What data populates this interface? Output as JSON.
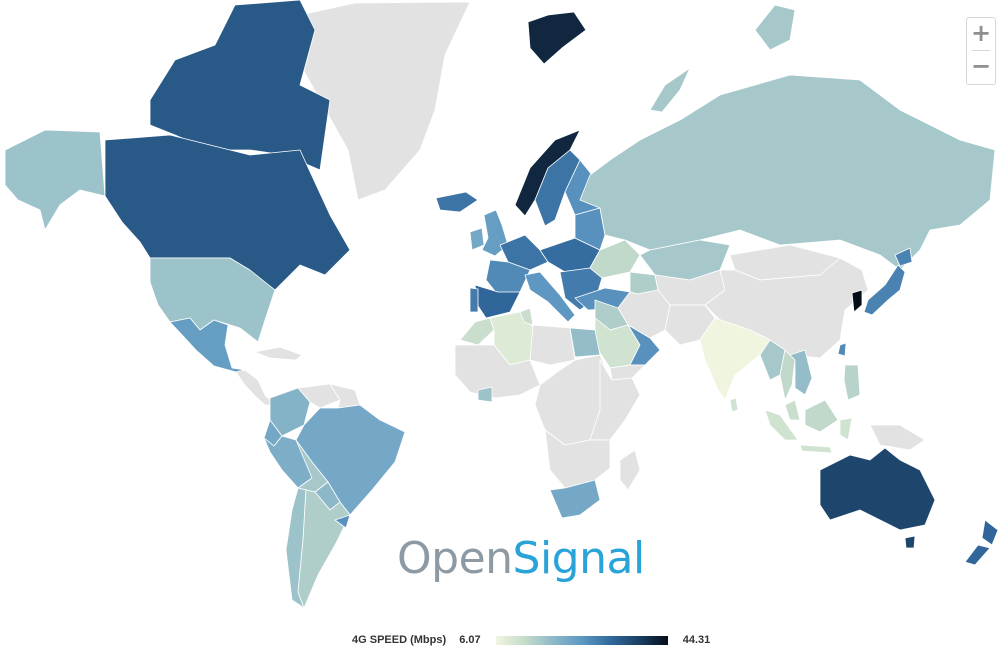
{
  "map": {
    "no_data_color": "#e2e2e2",
    "border_color": "#ffffff",
    "regions": [
      {
        "id": "greenland",
        "name": "Greenland",
        "value": null
      },
      {
        "id": "canada-arctic-islands",
        "name": "Canada",
        "value": 34
      },
      {
        "id": "canada",
        "name": "Canada",
        "value": 34
      },
      {
        "id": "alaska",
        "name": "United States",
        "value": 17
      },
      {
        "id": "usa",
        "name": "United States",
        "value": 17
      },
      {
        "id": "mexico",
        "name": "Mexico",
        "value": 24
      },
      {
        "id": "central-america",
        "name": "Central America",
        "value": null
      },
      {
        "id": "caribbean",
        "name": "Caribbean",
        "value": null
      },
      {
        "id": "colombia",
        "name": "Colombia",
        "value": 20
      },
      {
        "id": "venezuela",
        "name": "Venezuela",
        "value": null
      },
      {
        "id": "guianas",
        "name": "Guianas",
        "value": null
      },
      {
        "id": "ecuador",
        "name": "Ecuador",
        "value": 22
      },
      {
        "id": "peru",
        "name": "Peru",
        "value": 21
      },
      {
        "id": "brazil",
        "name": "Brazil",
        "value": 22
      },
      {
        "id": "bolivia",
        "name": "Bolivia",
        "value": 16
      },
      {
        "id": "paraguay",
        "name": "Paraguay",
        "value": 19
      },
      {
        "id": "chile",
        "name": "Chile",
        "value": 17
      },
      {
        "id": "argentina",
        "name": "Argentina",
        "value": 15
      },
      {
        "id": "uruguay",
        "name": "Uruguay",
        "value": 26
      },
      {
        "id": "iceland",
        "name": "Iceland",
        "value": 30
      },
      {
        "id": "uk",
        "name": "United Kingdom",
        "value": 24
      },
      {
        "id": "ireland",
        "name": "Ireland",
        "value": 22
      },
      {
        "id": "norway",
        "name": "Norway",
        "value": 41
      },
      {
        "id": "sweden",
        "name": "Sweden",
        "value": 30
      },
      {
        "id": "finland",
        "name": "Finland",
        "value": 26
      },
      {
        "id": "svalbard",
        "name": "Svalbard",
        "value": 41
      },
      {
        "id": "western-europe",
        "name": "Western Europe",
        "value": 30
      },
      {
        "id": "france",
        "name": "France",
        "value": 27
      },
      {
        "id": "spain",
        "name": "Spain",
        "value": 32
      },
      {
        "id": "portugal",
        "name": "Portugal",
        "value": 29
      },
      {
        "id": "italy",
        "name": "Italy",
        "value": 25
      },
      {
        "id": "central-europe",
        "name": "Central Europe",
        "value": 31
      },
      {
        "id": "eastern-europe",
        "name": "Eastern Europe",
        "value": 26
      },
      {
        "id": "balkans",
        "name": "Balkans",
        "value": 29
      },
      {
        "id": "ukraine",
        "name": "Ukraine",
        "value": 13
      },
      {
        "id": "turkey",
        "name": "Turkey",
        "value": 26
      },
      {
        "id": "russia",
        "name": "Russia",
        "value": 16
      },
      {
        "id": "novaya-zemlya",
        "name": "Russia",
        "value": 16
      },
      {
        "id": "severnaya-zemlya",
        "name": "Russia",
        "value": 16
      },
      {
        "id": "kazakhstan",
        "name": "Kazakhstan",
        "value": 16
      },
      {
        "id": "caucasus",
        "name": "Caucasus",
        "value": 15
      },
      {
        "id": "central-asia",
        "name": "Central Asia",
        "value": null
      },
      {
        "id": "mongolia",
        "name": "Mongolia",
        "value": null
      },
      {
        "id": "china",
        "name": "China",
        "value": null
      },
      {
        "id": "taiwan",
        "name": "Taiwan",
        "value": 27
      },
      {
        "id": "korea",
        "name": "South Korea",
        "value": 44.31
      },
      {
        "id": "japan",
        "name": "Japan",
        "value": 28
      },
      {
        "id": "hokkaido",
        "name": "Japan",
        "value": 28
      },
      {
        "id": "iran",
        "name": "Iran",
        "value": null
      },
      {
        "id": "iraq-syria",
        "name": "Iraq and Syria",
        "value": 15
      },
      {
        "id": "saudi-arabia",
        "name": "Saudi Arabia",
        "value": 11
      },
      {
        "id": "oman-uae",
        "name": "Oman and UAE",
        "value": 26
      },
      {
        "id": "yemen",
        "name": "Yemen",
        "value": null
      },
      {
        "id": "afghanistan-pakistan",
        "name": "Afghanistan and Pakistan",
        "value": null
      },
      {
        "id": "india",
        "name": "India",
        "value": 6.07
      },
      {
        "id": "sri-lanka",
        "name": "Sri Lanka",
        "value": 11
      },
      {
        "id": "myanmar",
        "name": "Myanmar",
        "value": 16
      },
      {
        "id": "thailand",
        "name": "Thailand",
        "value": 13
      },
      {
        "id": "indochina",
        "name": "Indochina",
        "value": 18
      },
      {
        "id": "malaysia",
        "name": "Malaysia",
        "value": 12
      },
      {
        "id": "sumatra",
        "name": "Indonesia",
        "value": 11
      },
      {
        "id": "borneo",
        "name": "Borneo",
        "value": 13
      },
      {
        "id": "java",
        "name": "Indonesia",
        "value": 11
      },
      {
        "id": "sulawesi",
        "name": "Indonesia",
        "value": 11
      },
      {
        "id": "philippines",
        "name": "Philippines",
        "value": 14
      },
      {
        "id": "new-guinea",
        "name": "New Guinea",
        "value": null
      },
      {
        "id": "australia",
        "name": "Australia",
        "value": 37
      },
      {
        "id": "tasmania",
        "name": "Australia",
        "value": 37
      },
      {
        "id": "nz-north",
        "name": "New Zealand",
        "value": 32
      },
      {
        "id": "nz-south",
        "name": "New Zealand",
        "value": 32
      },
      {
        "id": "morocco",
        "name": "Morocco",
        "value": 12
      },
      {
        "id": "algeria",
        "name": "Algeria",
        "value": 9
      },
      {
        "id": "tunisia",
        "name": "Tunisia",
        "value": 12
      },
      {
        "id": "libya",
        "name": "Libya",
        "value": null
      },
      {
        "id": "egypt",
        "name": "Egypt",
        "value": 18
      },
      {
        "id": "west-africa",
        "name": "West Africa",
        "value": null
      },
      {
        "id": "ivory-coast-ghana",
        "name": "Ivory Coast and Ghana",
        "value": 17
      },
      {
        "id": "central-africa",
        "name": "Central Africa",
        "value": null
      },
      {
        "id": "east-africa",
        "name": "East Africa",
        "value": null
      },
      {
        "id": "southern-africa",
        "name": "Southern Africa",
        "value": null
      },
      {
        "id": "south-africa",
        "name": "South Africa",
        "value": 22
      },
      {
        "id": "madagascar",
        "name": "Madagascar",
        "value": null
      }
    ]
  },
  "legend": {
    "title": "4G SPEED (Mbps)",
    "min_label": "6.07",
    "max_label": "44.31",
    "min": 6.07,
    "max": 44.31,
    "gradient": [
      "#f0f5e0",
      "#c6dccb",
      "#8db9c9",
      "#5d97c2",
      "#32699d",
      "#1a3f63",
      "#050d19"
    ]
  },
  "brand": {
    "part1": "Open",
    "part2": "Signal"
  },
  "zoom": {
    "in_label": "+",
    "out_label": "−"
  }
}
